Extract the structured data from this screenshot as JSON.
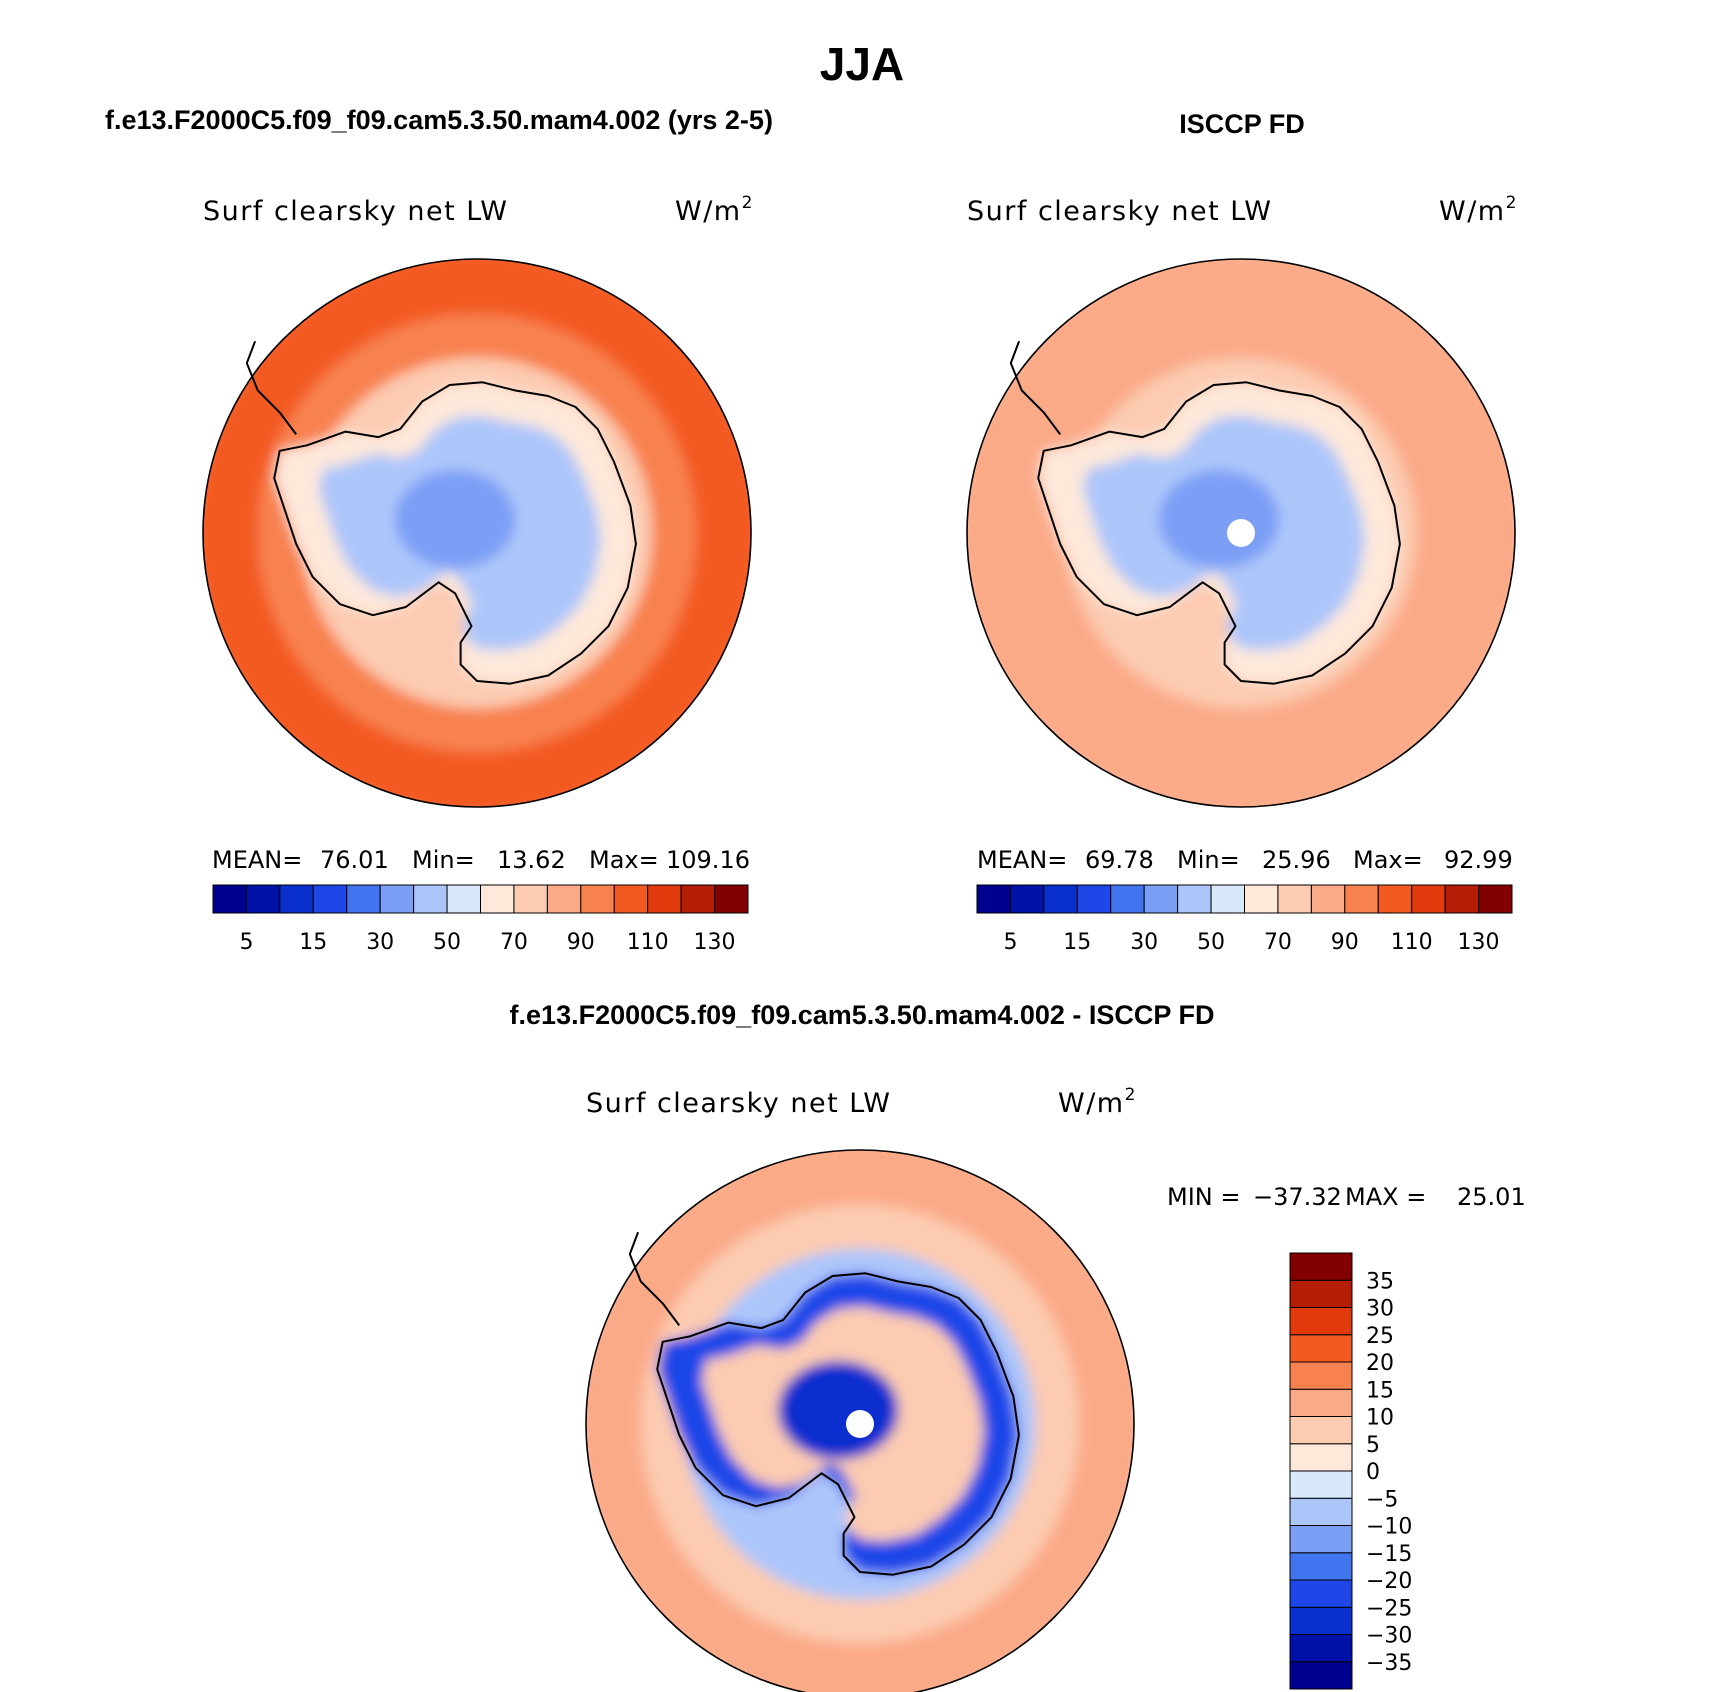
{
  "figure": {
    "title": "JJA"
  },
  "chart_data": [
    {
      "type": "heatmap",
      "projection": "south-polar-stereographic",
      "panel_title": "f.e13.F2000C5.f09_f09.cam5.3.50.mam4.002 (yrs 2-5)",
      "variable": "Surf clearsky net LW",
      "units": "W/m",
      "units_exp": "2",
      "stats": {
        "mean_label": "MEAN=",
        "mean": "76.01",
        "min_label": "Min=",
        "min": "13.62",
        "max_label": "Max=",
        "max": "109.16"
      },
      "colorbar": {
        "orientation": "horizontal",
        "levels": [
          5,
          10,
          15,
          20,
          30,
          40,
          50,
          60,
          70,
          80,
          90,
          100,
          110,
          120,
          130
        ],
        "tick_labels": [
          "5",
          "15",
          "30",
          "50",
          "70",
          "90",
          "110",
          "130"
        ],
        "colors": [
          "#000090",
          "#0011a8",
          "#0a2fcf",
          "#1f47e8",
          "#4374f0",
          "#7b9ff5",
          "#adc6fa",
          "#d8e9fb",
          "#fde8da",
          "#fccbb1",
          "#fbaa88",
          "#f8824f",
          "#f35a21",
          "#e33a0d",
          "#b51d06",
          "#820000"
        ]
      },
      "field": {
        "ocean_outer": 105,
        "ocean_mid": 95,
        "coastal_ring": 75,
        "ice_shelf": 62,
        "interior": 45,
        "interior_low": 32
      }
    },
    {
      "type": "heatmap",
      "projection": "south-polar-stereographic",
      "panel_title": "ISCCP FD",
      "variable": "Surf clearsky net LW",
      "units": "W/m",
      "units_exp": "2",
      "stats": {
        "mean_label": "MEAN=",
        "mean": "69.78",
        "min_label": "Min=",
        "min": "25.96",
        "max_label": "Max=",
        "max": "92.99"
      },
      "colorbar": {
        "orientation": "horizontal",
        "levels": [
          5,
          10,
          15,
          20,
          30,
          40,
          50,
          60,
          70,
          80,
          90,
          100,
          110,
          120,
          130
        ],
        "tick_labels": [
          "5",
          "15",
          "30",
          "50",
          "70",
          "90",
          "110",
          "130"
        ],
        "colors": [
          "#000090",
          "#0011a8",
          "#0a2fcf",
          "#1f47e8",
          "#4374f0",
          "#7b9ff5",
          "#adc6fa",
          "#d8e9fb",
          "#fde8da",
          "#fccbb1",
          "#fbaa88",
          "#f8824f",
          "#f35a21",
          "#e33a0d",
          "#b51d06",
          "#820000"
        ]
      },
      "field": {
        "ocean_outer": 85,
        "ocean_mid": 85,
        "coastal_ring": 75,
        "ice_shelf": 62,
        "interior": 45,
        "interior_low": 35
      }
    },
    {
      "type": "heatmap",
      "projection": "south-polar-stereographic",
      "panel_title": "f.e13.F2000C5.f09_f09.cam5.3.50.mam4.002 - ISCCP FD",
      "variable": "Surf clearsky net LW",
      "units": "W/m",
      "units_exp": "2",
      "stats": {
        "min_label": "MIN =",
        "min": "−37.32",
        "max_label": "MAX =",
        "max": "25.01"
      },
      "colorbar": {
        "orientation": "vertical",
        "levels": [
          -35,
          -30,
          -25,
          -20,
          -15,
          -10,
          -5,
          0,
          5,
          10,
          15,
          20,
          25,
          30,
          35
        ],
        "tick_labels": [
          "−35",
          "−30",
          "−25",
          "−20",
          "−15",
          "−10",
          "−5",
          "0",
          "5",
          "10",
          "15",
          "20",
          "25",
          "30",
          "35"
        ],
        "colors": [
          "#000090",
          "#0011a8",
          "#0a2fcf",
          "#1f47e8",
          "#4374f0",
          "#7b9ff5",
          "#adc6fa",
          "#d8e9fb",
          "#fde8da",
          "#fccbb1",
          "#fbaa88",
          "#f8824f",
          "#f35a21",
          "#e33a0d",
          "#b51d06",
          "#820000"
        ]
      },
      "field": {
        "ocean_outer": 12,
        "ocean_mid": 8,
        "coastal_ring": -8,
        "ice_shelf": -22,
        "interior": 7,
        "interior_low": -27
      }
    }
  ]
}
